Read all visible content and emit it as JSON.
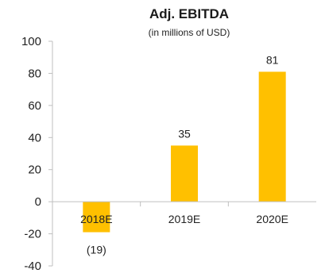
{
  "chart_data": {
    "type": "bar",
    "title": "Adj. EBITDA",
    "subtitle": "(in millions of USD)",
    "categories": [
      "2018E",
      "2019E",
      "2020E"
    ],
    "values": [
      -19,
      35,
      81
    ],
    "data_labels": [
      "(19)",
      "35",
      "81"
    ],
    "ylim": [
      -40,
      100
    ],
    "yticks": [
      100,
      80,
      60,
      40,
      20,
      0,
      -20,
      -40
    ],
    "grid": false,
    "legend": "none",
    "bar_color": "#FFC000",
    "axis_color": "#bfbfbf"
  }
}
